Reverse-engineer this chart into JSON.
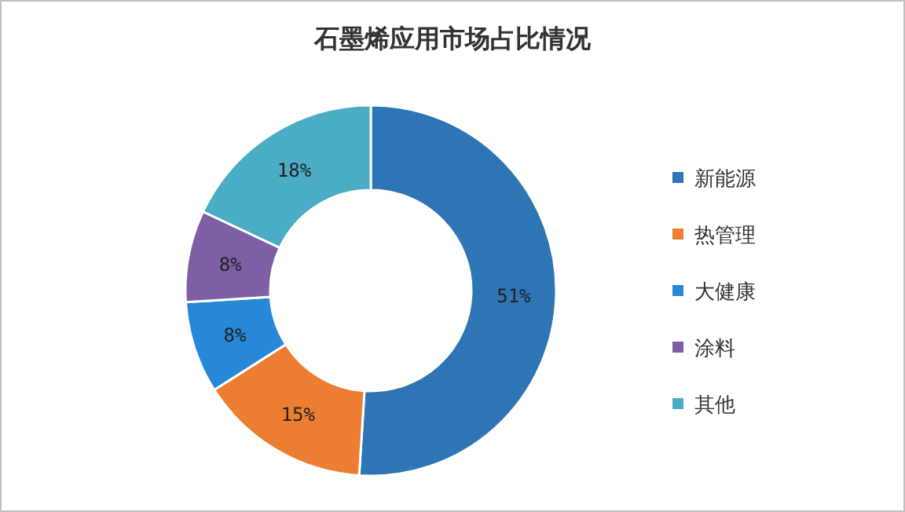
{
  "chart_data": {
    "type": "donut",
    "title": "石墨烯应用市场占比情况",
    "categories": [
      "新能源",
      "热管理",
      "大健康",
      "涂料",
      "其他"
    ],
    "values": [
      51,
      15,
      8,
      8,
      18
    ],
    "colors": [
      "#2e75b6",
      "#ed7d31",
      "#2688d6",
      "#7e5fa6",
      "#4bacc6"
    ],
    "value_labels": [
      "51%",
      "15%",
      "8%",
      "8%",
      "18%"
    ],
    "legend": "right"
  }
}
